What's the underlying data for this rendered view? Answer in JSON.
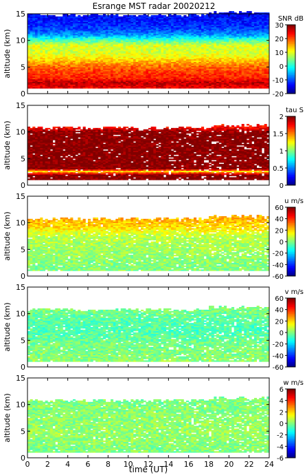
{
  "title": "Esrange MST radar 20020212",
  "xlabel": "time (UT)",
  "chart_data": [
    {
      "type": "heatmap",
      "colorbar_label": "SNR dB",
      "ylabel": "altitude (km)",
      "xlim": [
        0,
        24
      ],
      "ylim": [
        0,
        15
      ],
      "clim": [
        -20,
        30
      ],
      "colorbar_ticks": [
        -20,
        -10,
        0,
        10,
        20,
        30
      ],
      "x_ticks": [
        0,
        2,
        4,
        6,
        8,
        10,
        12,
        14,
        16,
        18,
        20,
        22,
        24
      ],
      "y_ticks": [
        0,
        5,
        10,
        15
      ],
      "data_range_km": [
        1,
        15
      ],
      "profile": [
        {
          "alt": 1,
          "value": 24
        },
        {
          "alt": 2,
          "value": 27
        },
        {
          "alt": 3,
          "value": 22
        },
        {
          "alt": 4,
          "value": 21
        },
        {
          "alt": 5,
          "value": 19
        },
        {
          "alt": 6,
          "value": 15
        },
        {
          "alt": 7,
          "value": 11
        },
        {
          "alt": 8,
          "value": 9
        },
        {
          "alt": 9,
          "value": 10
        },
        {
          "alt": 10,
          "value": 3
        },
        {
          "alt": 11,
          "value": -6
        },
        {
          "alt": 12,
          "value": -10
        },
        {
          "alt": 13,
          "value": -12
        },
        {
          "alt": 14,
          "value": -13
        },
        {
          "alt": 15,
          "value": -14
        }
      ]
    },
    {
      "type": "heatmap",
      "colorbar_label": "tau S",
      "ylabel": "altitude (km)",
      "xlim": [
        0,
        24
      ],
      "ylim": [
        0,
        15
      ],
      "clim": [
        0,
        2
      ],
      "colorbar_ticks": [
        0,
        0.5,
        1,
        1.5,
        2
      ],
      "x_ticks": [
        0,
        2,
        4,
        6,
        8,
        10,
        12,
        14,
        16,
        18,
        20,
        22,
        24
      ],
      "y_ticks": [
        0,
        5,
        10,
        15
      ],
      "data_range_km": [
        1,
        11
      ],
      "profile": [
        {
          "alt": 1,
          "value": 2
        },
        {
          "alt": 2,
          "value": 2
        },
        {
          "alt": 2.7,
          "value": 1.2
        },
        {
          "alt": 3,
          "value": 2
        },
        {
          "alt": 4,
          "value": 2
        },
        {
          "alt": 5,
          "value": 2
        },
        {
          "alt": 6,
          "value": 2
        },
        {
          "alt": 7,
          "value": 2
        },
        {
          "alt": 8,
          "value": 2
        },
        {
          "alt": 9,
          "value": 2
        },
        {
          "alt": 10,
          "value": 2
        },
        {
          "alt": 11,
          "value": 1.7
        }
      ]
    },
    {
      "type": "heatmap",
      "colorbar_label": "u m/s",
      "ylabel": "altitude (km)",
      "xlim": [
        0,
        24
      ],
      "ylim": [
        0,
        15
      ],
      "clim": [
        -60,
        60
      ],
      "colorbar_ticks": [
        -60,
        -40,
        -20,
        0,
        20,
        40,
        60
      ],
      "x_ticks": [
        0,
        2,
        4,
        6,
        8,
        10,
        12,
        14,
        16,
        18,
        20,
        22,
        24
      ],
      "y_ticks": [
        0,
        5,
        10,
        15
      ],
      "data_range_km": [
        1,
        11
      ],
      "profile": [
        {
          "alt": 1,
          "value": 0
        },
        {
          "alt": 3,
          "value": 2
        },
        {
          "alt": 5,
          "value": 4
        },
        {
          "alt": 7,
          "value": 6
        },
        {
          "alt": 8,
          "value": 10
        },
        {
          "alt": 9,
          "value": 18
        },
        {
          "alt": 10,
          "value": 22
        },
        {
          "alt": 11,
          "value": 24
        }
      ]
    },
    {
      "type": "heatmap",
      "colorbar_label": "v m/s",
      "ylabel": "altitude (km)",
      "xlim": [
        0,
        24
      ],
      "ylim": [
        0,
        15
      ],
      "clim": [
        -60,
        60
      ],
      "colorbar_ticks": [
        -60,
        -40,
        -20,
        0,
        20,
        40,
        60
      ],
      "x_ticks": [
        0,
        2,
        4,
        6,
        8,
        10,
        12,
        14,
        16,
        18,
        20,
        22,
        24
      ],
      "y_ticks": [
        0,
        5,
        10,
        15
      ],
      "data_range_km": [
        1,
        11
      ],
      "profile": [
        {
          "alt": 1,
          "value": 2
        },
        {
          "alt": 3,
          "value": 0
        },
        {
          "alt": 5,
          "value": -2
        },
        {
          "alt": 7,
          "value": -6
        },
        {
          "alt": 9,
          "value": -4
        },
        {
          "alt": 11,
          "value": 0
        }
      ]
    },
    {
      "type": "heatmap",
      "colorbar_label": "w m/s",
      "ylabel": "altitude (km)",
      "xlim": [
        0,
        24
      ],
      "ylim": [
        0,
        15
      ],
      "clim": [
        -6,
        6
      ],
      "colorbar_ticks": [
        -6,
        -4,
        -2,
        0,
        2,
        4,
        6
      ],
      "x_ticks": [
        0,
        2,
        4,
        6,
        8,
        10,
        12,
        14,
        16,
        18,
        20,
        22,
        24
      ],
      "y_ticks": [
        0,
        5,
        10,
        15
      ],
      "data_range_km": [
        1,
        11
      ],
      "profile": [
        {
          "alt": 1,
          "value": 0
        },
        {
          "alt": 5,
          "value": 0.3
        },
        {
          "alt": 11,
          "value": 0
        }
      ]
    }
  ]
}
